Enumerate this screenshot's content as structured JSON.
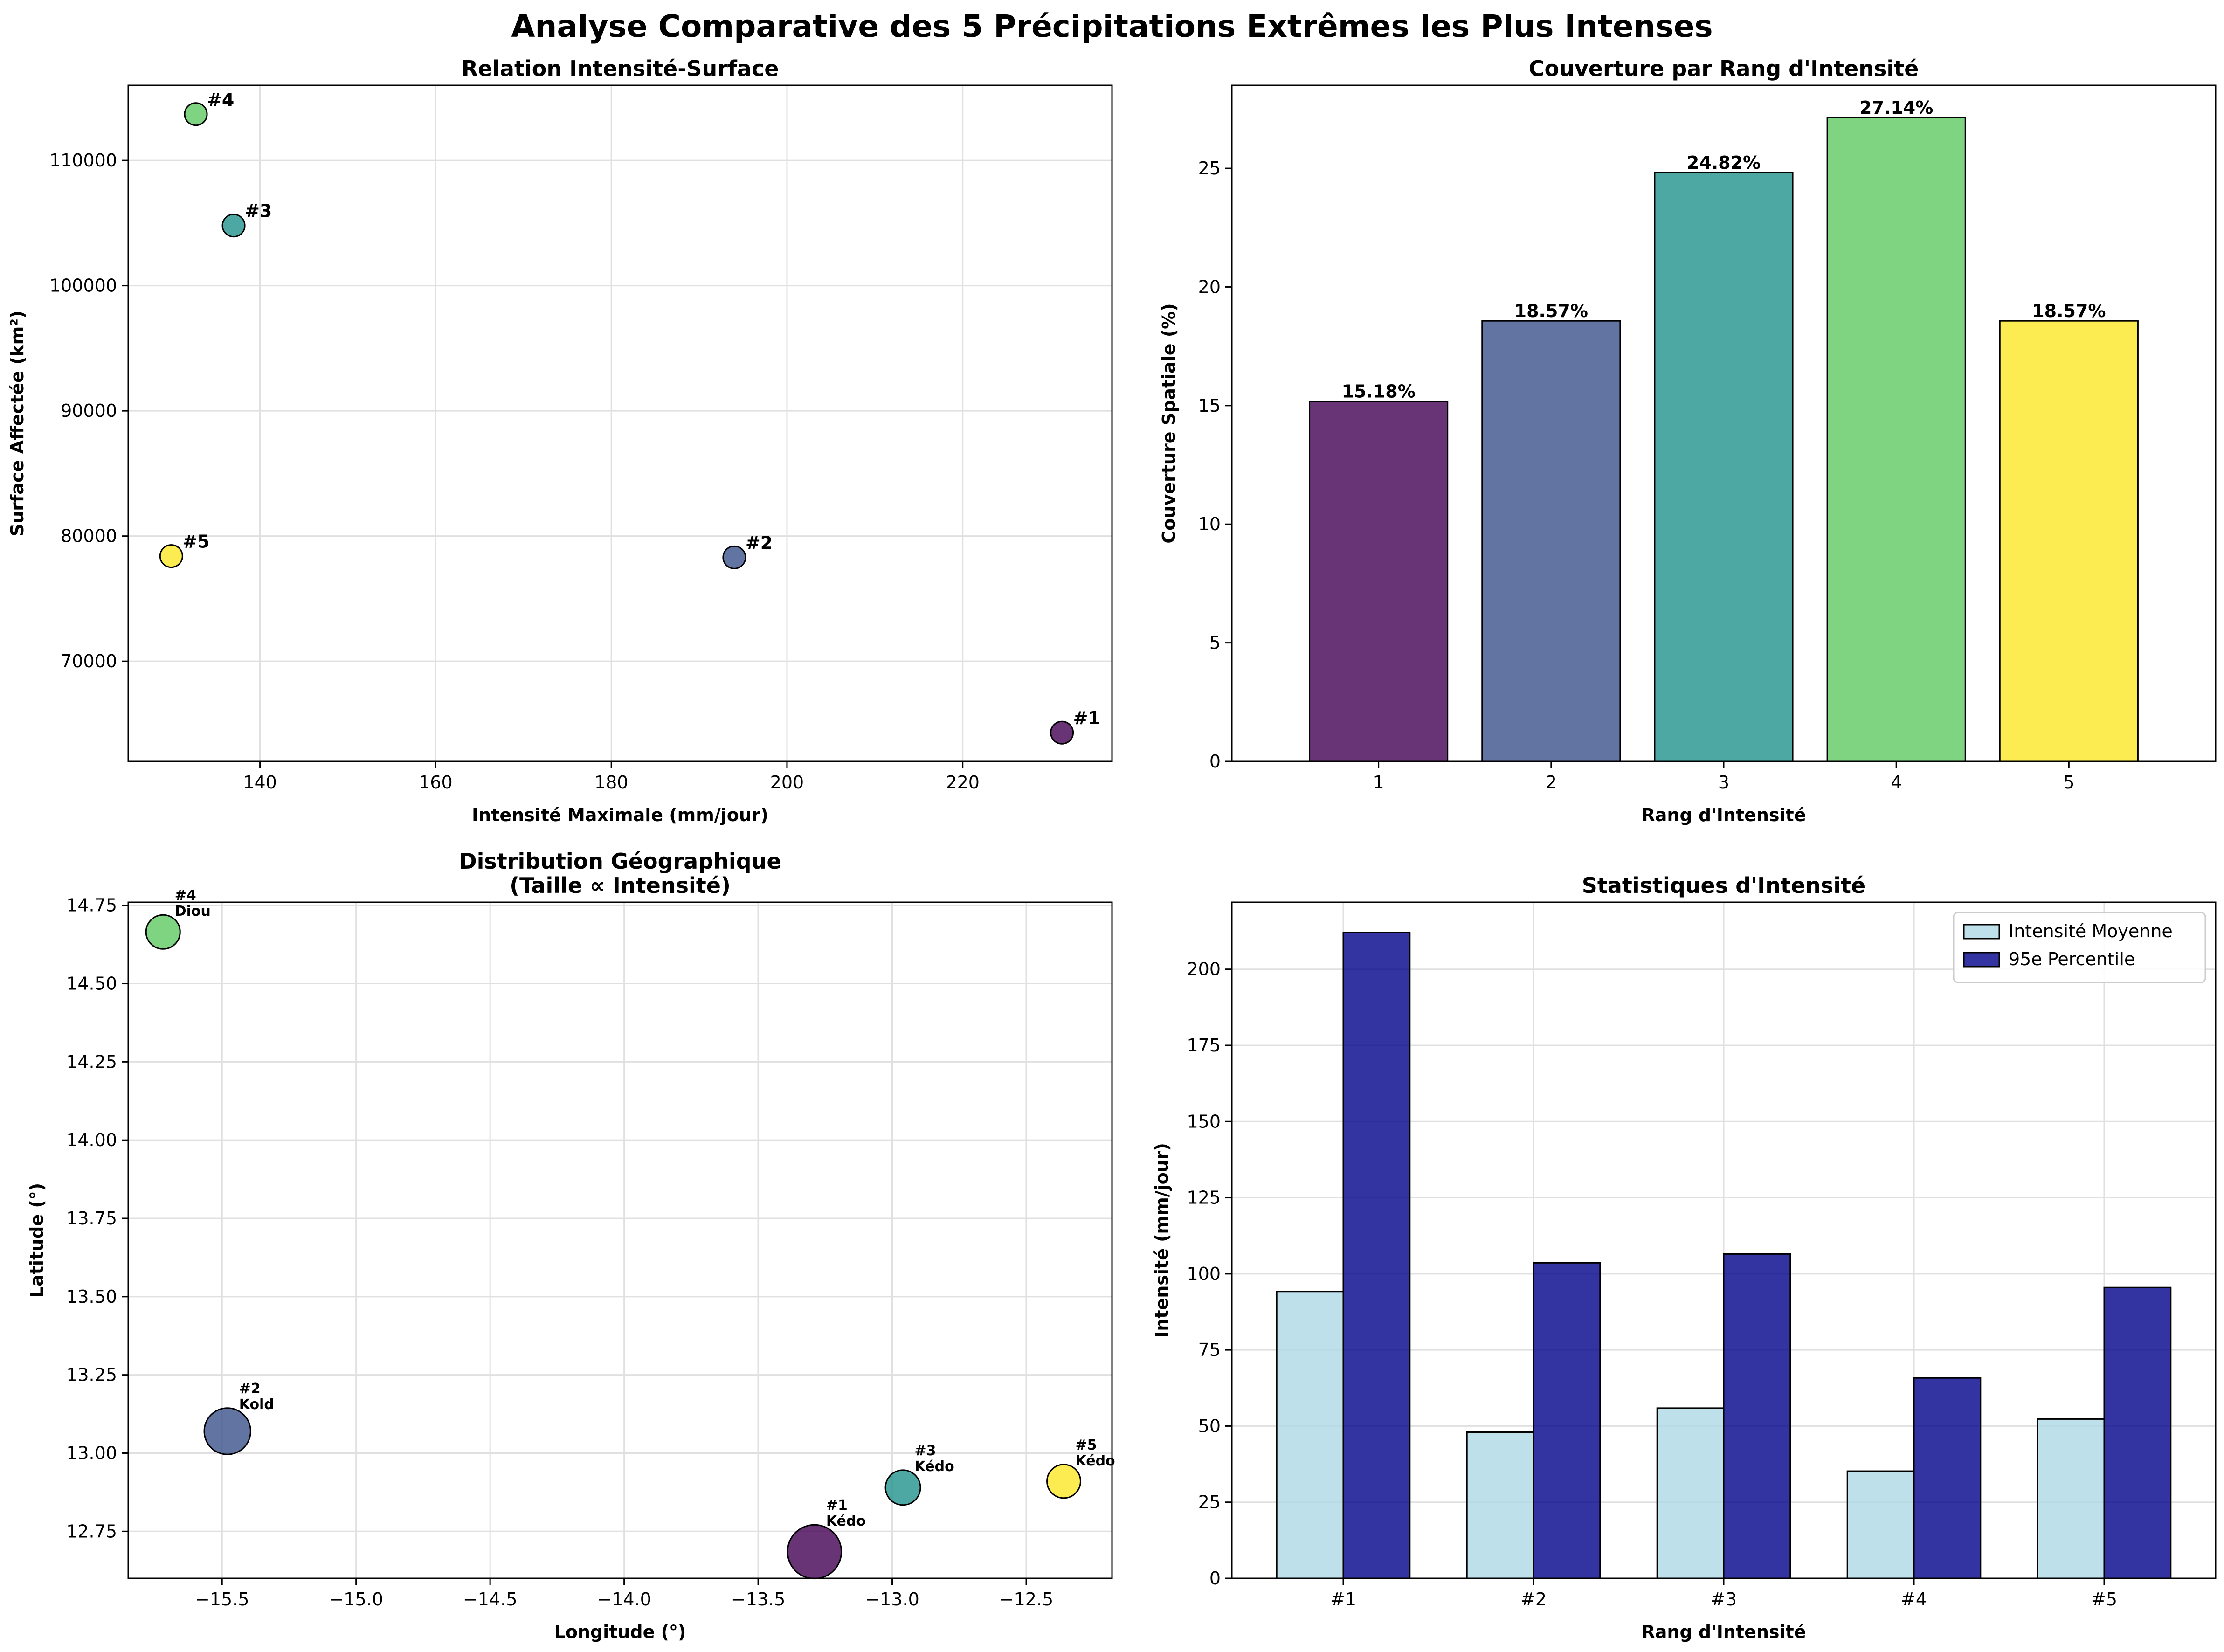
{
  "figure": {
    "title": "Analyse Comparative des 5 Précipitations Extrêmes les Plus Intenses"
  },
  "colors": {
    "rank1": "#440154",
    "rank2": "#3b528b",
    "rank3": "#21918c",
    "rank4": "#5ec962",
    "rank5": "#fde725",
    "light_blue": "#add8e6",
    "navy": "#00008b",
    "grid": "#e0e0e0"
  },
  "chart_data": [
    {
      "id": "scatter_intensity_surface",
      "type": "scatter",
      "title": "Relation Intensité-Surface",
      "xlabel": "Intensité Maximale (mm/jour)",
      "ylabel": "Surface Affectée (km²)",
      "xlim": [
        125,
        237
      ],
      "ylim": [
        62000,
        116000
      ],
      "xticks": [
        140,
        160,
        180,
        200,
        220
      ],
      "yticks": [
        70000,
        80000,
        90000,
        100000,
        110000
      ],
      "grid": true,
      "points": [
        {
          "label": "#1",
          "x": 231.3,
          "y": 64300,
          "rank": 1
        },
        {
          "label": "#2",
          "x": 194.0,
          "y": 78300,
          "rank": 2
        },
        {
          "label": "#3",
          "x": 137.0,
          "y": 104800,
          "rank": 3
        },
        {
          "label": "#4",
          "x": 132.7,
          "y": 113700,
          "rank": 4
        },
        {
          "label": "#5",
          "x": 129.9,
          "y": 78400,
          "rank": 5
        }
      ]
    },
    {
      "id": "bar_coverage",
      "type": "bar",
      "title": "Couverture par Rang d'Intensité",
      "xlabel": "Rang d'Intensité",
      "ylabel": "Couverture Spatiale (%)",
      "categories": [
        "1",
        "2",
        "3",
        "4",
        "5"
      ],
      "values": [
        15.18,
        18.57,
        24.82,
        27.14,
        18.57
      ],
      "value_labels": [
        "15.18%",
        "18.57%",
        "24.82%",
        "27.14%",
        "18.57%"
      ],
      "ylim": [
        0,
        28.5
      ],
      "yticks": [
        0,
        5,
        10,
        15,
        20,
        25
      ],
      "grid": false
    },
    {
      "id": "scatter_geo",
      "type": "scatter",
      "title": "Distribution Géographique",
      "subtitle": "(Taille ∝ Intensité)",
      "xlabel": "Longitude (°)",
      "ylabel": "Latitude (°)",
      "xlim": [
        -15.85,
        -12.18
      ],
      "ylim": [
        12.6,
        14.76
      ],
      "xticks": [
        -15.5,
        -15.0,
        -14.5,
        -14.0,
        -13.5,
        -13.0,
        -12.5
      ],
      "xtick_labels": [
        "−15.5",
        "−15.0",
        "−14.5",
        "−14.0",
        "−13.5",
        "−13.0",
        "−12.5"
      ],
      "yticks": [
        12.75,
        13.0,
        13.25,
        13.5,
        13.75,
        14.0,
        14.25,
        14.5,
        14.75
      ],
      "ytick_labels": [
        "12.75",
        "13.00",
        "13.25",
        "13.50",
        "13.75",
        "14.00",
        "14.25",
        "14.50",
        "14.75"
      ],
      "grid": true,
      "points": [
        {
          "label": "#1",
          "place": "Kédo",
          "x": -13.29,
          "y": 12.685,
          "size": 231.3,
          "rank": 1
        },
        {
          "label": "#2",
          "place": "Kold",
          "x": -15.48,
          "y": 13.07,
          "size": 194.0,
          "rank": 2
        },
        {
          "label": "#3",
          "place": "Kédo",
          "x": -12.96,
          "y": 12.89,
          "size": 137.0,
          "rank": 3
        },
        {
          "label": "#4",
          "place": "Diou",
          "x": -15.72,
          "y": 14.665,
          "size": 132.7,
          "rank": 4
        },
        {
          "label": "#5",
          "place": "Kédo",
          "x": -12.36,
          "y": 12.91,
          "size": 129.9,
          "rank": 5
        }
      ]
    },
    {
      "id": "bar_stats",
      "type": "bar",
      "title": "Statistiques d'Intensité",
      "xlabel": "Rang d'Intensité",
      "ylabel": "Intensité (mm/jour)",
      "categories": [
        "#1",
        "#2",
        "#3",
        "#4",
        "#5"
      ],
      "ylim": [
        0,
        222
      ],
      "yticks": [
        0,
        25,
        50,
        75,
        100,
        125,
        150,
        175,
        200
      ],
      "grid": true,
      "legend_position": "top-right",
      "series": [
        {
          "name": "Intensité Moyenne",
          "values": [
            94.2,
            48.0,
            55.9,
            35.2,
            52.3
          ],
          "color": "#add8e6"
        },
        {
          "name": "95e Percentile",
          "values": [
            212.0,
            103.6,
            106.5,
            65.8,
            95.5
          ],
          "color": "#00008b"
        }
      ]
    }
  ]
}
